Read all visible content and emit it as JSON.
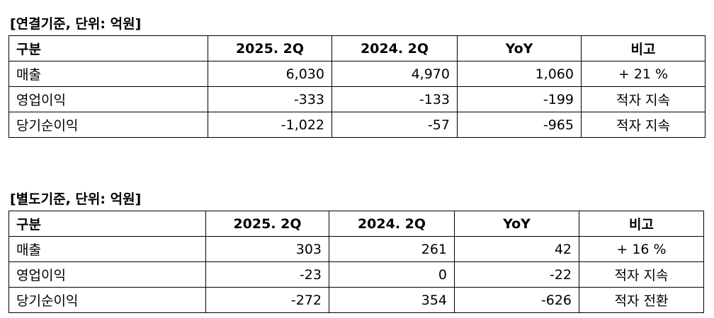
{
  "tables": [
    {
      "title": "[연결기준, 단위: 억원]",
      "header": [
        "구분",
        "2025. 2Q",
        "2024. 2Q",
        "YoY",
        "비고"
      ],
      "rows": [
        [
          "매출",
          "6,030",
          "4,970",
          "1,060",
          "+ 21 %"
        ],
        [
          "영업이익",
          "-333",
          "-133",
          "-199",
          "적자 지속"
        ],
        [
          "당기순이익",
          "-1,022",
          "-57",
          "-965",
          "적자 지속"
        ]
      ]
    },
    {
      "title": "[별도기준, 단위: 억원]",
      "header": [
        "구분",
        "2025. 2Q",
        "2024. 2Q",
        "YoY",
        "비고"
      ],
      "rows": [
        [
          "매출",
          "303",
          "261",
          "42",
          "+ 16 %"
        ],
        [
          "영업이익",
          "-23",
          "0",
          "-22",
          "적자 지속"
        ],
        [
          "당기순이익",
          "-272",
          "354",
          "-626",
          "적자 전환"
        ]
      ]
    }
  ]
}
